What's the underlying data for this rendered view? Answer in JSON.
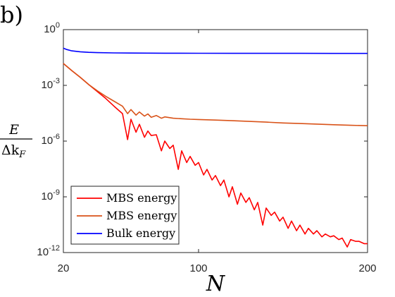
{
  "panel_label": "b)",
  "chart_data": {
    "type": "line",
    "title": "",
    "xlabel": "N",
    "ylabel_numerator": "E",
    "ylabel_denominator": "Δk",
    "ylabel_denominator_subscript": "F",
    "x_scale": "linear",
    "y_scale": "log",
    "xlim": [
      20,
      200
    ],
    "ylim": [
      1e-12,
      1
    ],
    "x_ticks": [
      20,
      100,
      200
    ],
    "x_tick_labels": [
      "20",
      "100",
      "200"
    ],
    "y_ticks": [
      1,
      0.001,
      1e-06,
      1e-09,
      1e-12
    ],
    "y_tick_labels": [
      {
        "base": "10",
        "exp": "0"
      },
      {
        "base": "10",
        "exp": "-3"
      },
      {
        "base": "10",
        "exp": "-6"
      },
      {
        "base": "10",
        "exp": "-9"
      },
      {
        "base": "10",
        "exp": "-12"
      }
    ],
    "grid": false,
    "legend_position": "bottom-left",
    "series": [
      {
        "name": "MBS energy",
        "color": "#ff0000",
        "x": [
          20,
          25,
          30,
          35,
          40,
          45,
          50,
          55,
          58,
          60,
          63,
          65,
          68,
          70,
          72,
          75,
          78,
          80,
          83,
          85,
          88,
          90,
          93,
          95,
          98,
          100,
          103,
          105,
          108,
          110,
          113,
          115,
          118,
          120,
          123,
          125,
          128,
          130,
          133,
          135,
          138,
          140,
          143,
          145,
          148,
          150,
          153,
          155,
          158,
          160,
          163,
          165,
          168,
          170,
          173,
          175,
          178,
          180,
          183,
          185,
          188,
          190,
          193,
          195,
          198,
          200
        ],
        "y": [
          0.015,
          0.0062,
          0.0027,
          0.0011,
          0.00047,
          0.0002,
          7.5e-05,
          3e-05,
          1.2e-06,
          1.5e-05,
          3e-06,
          8e-06,
          1.6e-06,
          3.5e-06,
          2e-06,
          2.2e-06,
          3e-07,
          1e-06,
          4e-07,
          6e-07,
          3e-08,
          3e-07,
          7e-08,
          1.5e-07,
          5e-08,
          7e-08,
          1.5e-08,
          3e-08,
          8e-09,
          1.4e-08,
          4e-09,
          8e-09,
          1e-09,
          3.5e-09,
          4e-10,
          1.6e-09,
          5e-10,
          9e-10,
          2e-10,
          5e-10,
          3e-11,
          2.5e-10,
          1e-10,
          1.5e-10,
          5e-11,
          8e-11,
          2e-11,
          5e-11,
          1.5e-11,
          3e-11,
          1e-11,
          2e-11,
          1e-11,
          1.5e-11,
          7e-12,
          1e-11,
          7e-12,
          8e-12,
          5e-12,
          6e-12,
          2e-12,
          5e-12,
          4e-12,
          4e-12,
          3e-12,
          3e-12
        ]
      },
      {
        "name": "MBS energy",
        "color": "#d95319",
        "x": [
          20,
          25,
          30,
          35,
          40,
          45,
          50,
          55,
          58,
          60,
          63,
          65,
          68,
          70,
          72,
          75,
          78,
          80,
          85,
          90,
          95,
          100,
          110,
          120,
          130,
          140,
          150,
          160,
          170,
          180,
          190,
          200
        ],
        "y": [
          0.015,
          0.0062,
          0.0027,
          0.0011,
          0.00052,
          0.00026,
          0.00014,
          7.5e-05,
          3e-05,
          5e-05,
          2.5e-05,
          3.7e-05,
          2.2e-05,
          2.9e-05,
          1.9e-05,
          2.4e-05,
          1.7e-05,
          2e-05,
          1.7e-05,
          1.6e-05,
          1.5e-05,
          1.45e-05,
          1.35e-05,
          1.25e-05,
          1.15e-05,
          1.05e-05,
          9.5e-06,
          8.8e-06,
          8.2e-06,
          7.6e-06,
          7.1e-06,
          6.7e-06
        ]
      },
      {
        "name": "Bulk energy",
        "color": "#0000ff",
        "x": [
          20,
          22,
          25,
          30,
          35,
          40,
          50,
          60,
          80,
          100,
          120,
          140,
          160,
          180,
          200
        ],
        "y": [
          0.1,
          0.085,
          0.072,
          0.064,
          0.06,
          0.058,
          0.056,
          0.055,
          0.054,
          0.0535,
          0.0532,
          0.053,
          0.0528,
          0.0526,
          0.0525
        ]
      }
    ]
  }
}
